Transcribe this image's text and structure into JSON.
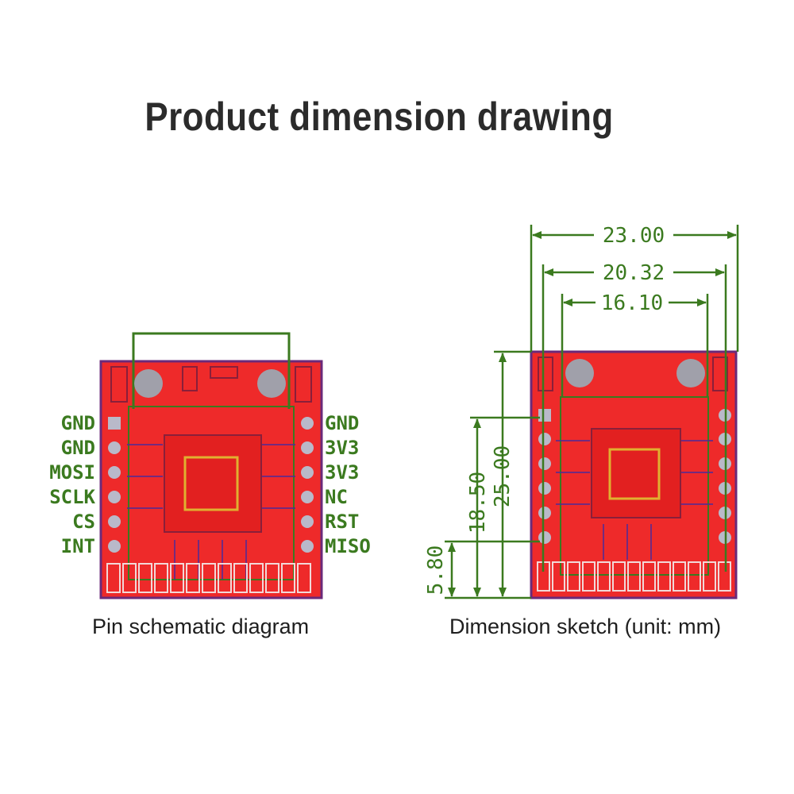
{
  "title": "Product dimension drawing",
  "captions": {
    "left": "Pin schematic diagram",
    "right": "Dimension sketch (unit: mm)"
  },
  "pins": {
    "left": [
      "GND",
      "GND",
      "MOSI",
      "SCLK",
      "CS",
      "INT"
    ],
    "right": [
      "GND",
      "3V3",
      "3V3",
      "NC",
      "RST",
      "MISO"
    ]
  },
  "dimensions": {
    "width_overall": "23.00",
    "width_pins": "20.32",
    "width_inner": "16.10",
    "height_overall": "25.00",
    "height_pins": "18.50",
    "height_bottom": "5.80"
  },
  "colors": {
    "board": "#ee2a2a",
    "outline": "#6b2a7a",
    "dimension": "#3b7a1f",
    "pad": "#b9b9c9"
  }
}
